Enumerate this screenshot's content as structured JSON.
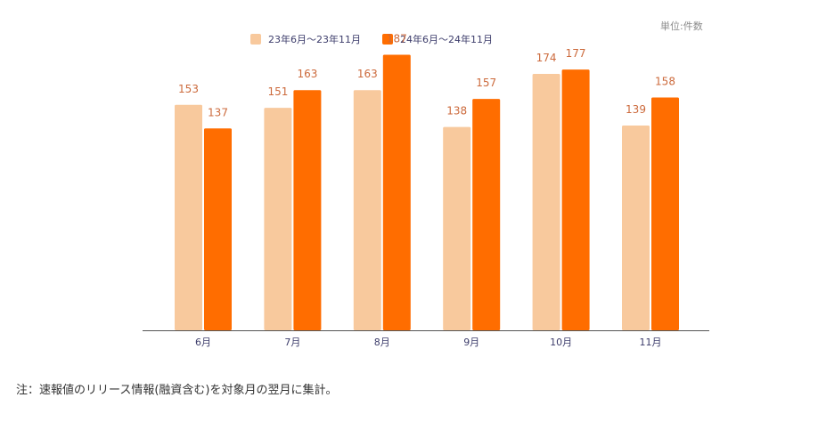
{
  "unit_label": "単位:件数",
  "legend": [
    {
      "label": "23年6月～23年11月",
      "color": "#f8c99d"
    },
    {
      "label": "24年6月～24年11月",
      "color": "#ff6d00"
    }
  ],
  "note": "注：速報値のリリース情報(融資含む)を対象月の翌月に集計。",
  "colors": {
    "series1": "#f8c99d",
    "series2": "#ff6d00",
    "value_label": "#cc6a3c",
    "axis_label": "#3d3d6b",
    "axis_line": "#555555"
  },
  "chart_data": {
    "type": "bar",
    "title": "",
    "xlabel": "",
    "ylabel": "",
    "ylim": [
      0,
      200
    ],
    "grid": false,
    "categories": [
      "6月",
      "7月",
      "8月",
      "9月",
      "10月",
      "11月"
    ],
    "series": [
      {
        "name": "23年6月～23年11月",
        "values": [
          153,
          151,
          163,
          138,
          174,
          139
        ]
      },
      {
        "name": "24年6月～24年11月",
        "values": [
          137,
          163,
          187,
          157,
          177,
          158
        ]
      }
    ]
  }
}
